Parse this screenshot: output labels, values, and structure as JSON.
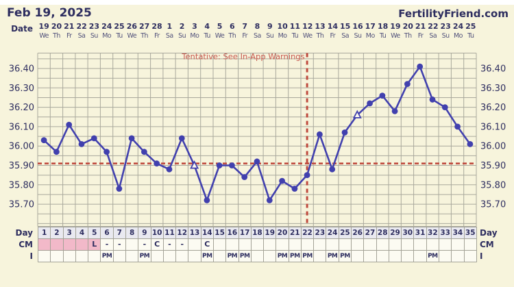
{
  "header": {
    "title": "Feb 19, 2025",
    "brand": "FertilityFriend.com"
  },
  "row_labels": {
    "date": "Date",
    "day": "Day",
    "cm": "CM",
    "intercourse": "I"
  },
  "colors": {
    "background": "#f7f4dc",
    "navy_text": "#2d2d5f",
    "temp_line": "#4140ae",
    "dashed_red": "#bf4a3e",
    "annotation_red": "#c85a50",
    "menses_pink": "#f2b9c9",
    "day_row_bg": "#e9e9f0",
    "gridline": "#a9a89c"
  },
  "chart_data": {
    "type": "line",
    "title": "Basal body temperature chart",
    "x_unit": "cycle day",
    "cycle_days": [
      1,
      2,
      3,
      4,
      5,
      6,
      7,
      8,
      9,
      10,
      11,
      12,
      13,
      14,
      15,
      16,
      17,
      18,
      19,
      20,
      21,
      22,
      23,
      24,
      25,
      26,
      27,
      28,
      29,
      30,
      31,
      32,
      33,
      34,
      35
    ],
    "dates": [
      19,
      20,
      21,
      22,
      23,
      24,
      25,
      26,
      27,
      28,
      1,
      2,
      3,
      4,
      5,
      6,
      7,
      8,
      9,
      10,
      11,
      12,
      13,
      14,
      15,
      16,
      17,
      18,
      19,
      20,
      21,
      22,
      23,
      24,
      25
    ],
    "weekdays": [
      "We",
      "Th",
      "Fr",
      "Sa",
      "Su",
      "Mo",
      "Tu",
      "We",
      "Th",
      "Fr",
      "Sa",
      "Su",
      "Mo",
      "Tu",
      "We",
      "Th",
      "Fr",
      "Sa",
      "Su",
      "Mo",
      "Tu",
      "We",
      "Th",
      "Fr",
      "Sa",
      "Su",
      "Mo",
      "Tu",
      "We",
      "Th",
      "Fr",
      "Sa",
      "Su",
      "Mo",
      "Tu"
    ],
    "temps_c": [
      36.03,
      35.97,
      36.11,
      36.01,
      36.04,
      35.97,
      35.78,
      36.04,
      35.97,
      35.91,
      35.88,
      36.04,
      35.9,
      35.72,
      35.9,
      35.9,
      35.84,
      35.92,
      35.72,
      35.82,
      35.78,
      35.85,
      36.06,
      35.88,
      36.07,
      36.16,
      36.22,
      36.26,
      36.18,
      36.32,
      36.41,
      36.24,
      36.2,
      36.1,
      36.01
    ],
    "open_triangle_days": [
      13,
      26
    ],
    "coverline_c": 35.91,
    "tentative_vertical_line_day": 22,
    "annotation": "Tentative: See In-App Warnings",
    "ylim": [
      35.585,
      36.48
    ],
    "y_tick_labels": [
      "35.70",
      "35.80",
      "35.90",
      "36.00",
      "36.10",
      "36.20",
      "36.30",
      "36.40"
    ],
    "grid_step": 0.05,
    "legend_position": "none",
    "grid": true,
    "menses_days": [
      1,
      2,
      3,
      4,
      5
    ],
    "cm_entries": {
      "5": "L",
      "6": "-",
      "7": "-",
      "9": "-",
      "10": "C",
      "11": "-",
      "12": "-",
      "14": "C"
    },
    "intercourse_pm_days": [
      6,
      9,
      14,
      16,
      17,
      20,
      21,
      22,
      24,
      25,
      32
    ]
  }
}
